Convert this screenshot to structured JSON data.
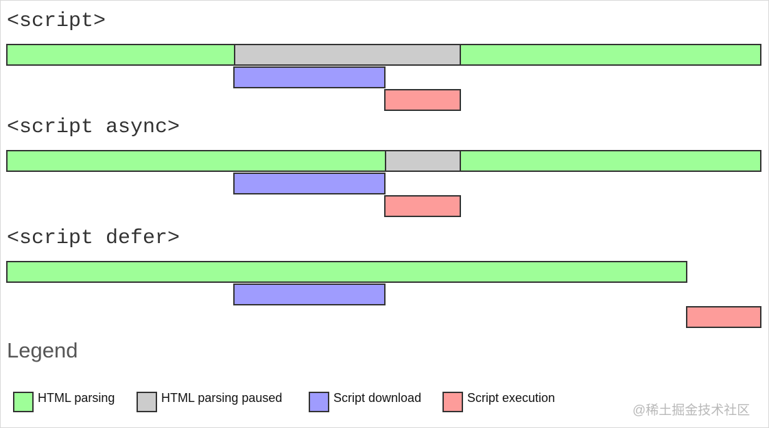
{
  "headings": {
    "script": "<script>",
    "async": "<script async>",
    "defer": "<script defer>"
  },
  "legend": {
    "title": "Legend",
    "items": [
      {
        "label": "HTML parsing",
        "color": "#9efe98"
      },
      {
        "label": "HTML parsing paused",
        "color": "#cccccc"
      },
      {
        "label": "Script download",
        "color": "#9f9cfe"
      },
      {
        "label": "Script execution",
        "color": "#fd9c9a"
      }
    ]
  },
  "watermark": "@稀土掘金技术社区"
}
